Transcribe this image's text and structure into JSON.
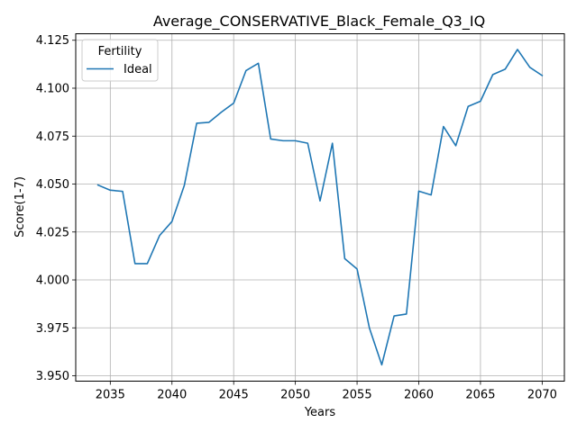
{
  "chart_data": {
    "type": "line",
    "title": "Average_CONSERVATIVE_Black_Female_Q3_IQ",
    "xlabel": "Years",
    "ylabel": "Score(1-7)",
    "xlim": [
      2032.2,
      2071.8
    ],
    "ylim": [
      3.9472,
      4.1284
    ],
    "x_ticks": [
      2035,
      2040,
      2045,
      2050,
      2055,
      2060,
      2065,
      2070
    ],
    "y_ticks": [
      3.95,
      3.975,
      4.0,
      4.025,
      4.05,
      4.075,
      4.1,
      4.125
    ],
    "x_tick_labels": [
      "2035",
      "2040",
      "2045",
      "2050",
      "2055",
      "2060",
      "2065",
      "2070"
    ],
    "y_tick_labels": [
      "3.950",
      "3.975",
      "4.000",
      "4.025",
      "4.050",
      "4.075",
      "4.100",
      "4.125"
    ],
    "grid": true,
    "legend": {
      "title": "Fertility",
      "placement": "upper-left"
    },
    "series": [
      {
        "name": "Ideal",
        "color": "#1f77b4",
        "x": [
          2034,
          2035,
          2036,
          2037,
          2038,
          2039,
          2040,
          2041,
          2042,
          2043,
          2044,
          2045,
          2046,
          2047,
          2048,
          2049,
          2050,
          2051,
          2052,
          2053,
          2054,
          2055,
          2056,
          2057,
          2058,
          2059,
          2060,
          2061,
          2062,
          2063,
          2064,
          2065,
          2066,
          2067,
          2068,
          2069,
          2070
        ],
        "y": [
          4.0495,
          4.0468,
          4.0462,
          4.0085,
          4.0085,
          4.0232,
          4.0305,
          4.0493,
          4.0817,
          4.0822,
          4.0875,
          4.0922,
          4.1092,
          4.113,
          4.0735,
          4.0726,
          4.0726,
          4.0713,
          4.0412,
          4.0713,
          4.0111,
          4.0057,
          3.9749,
          3.9557,
          3.9812,
          3.9822,
          4.0463,
          4.0443,
          4.08,
          4.07,
          4.0905,
          4.0932,
          4.1071,
          4.1099,
          4.1202,
          4.1109,
          4.1066
        ]
      }
    ]
  }
}
